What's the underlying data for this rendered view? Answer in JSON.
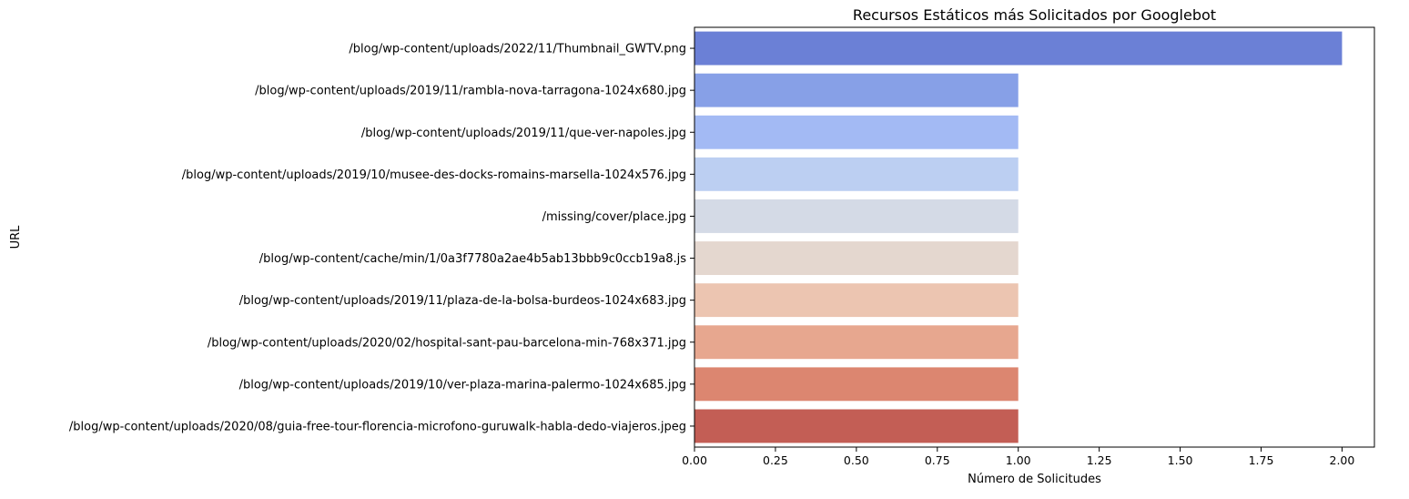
{
  "chart_data": {
    "type": "bar",
    "orientation": "horizontal",
    "title": "Recursos Estáticos más Solicitados por Googlebot",
    "xlabel": "Número de Solicitudes",
    "ylabel": "URL",
    "xlim": [
      0,
      2.1
    ],
    "xticks": [
      "0.00",
      "0.25",
      "0.50",
      "0.75",
      "1.00",
      "1.25",
      "1.50",
      "1.75",
      "2.00"
    ],
    "grid": false,
    "categories": [
      "/blog/wp-content/uploads/2022/11/Thumbnail_GWTV.png",
      "/blog/wp-content/uploads/2019/11/rambla-nova-tarragona-1024x680.jpg",
      "/blog/wp-content/uploads/2019/11/que-ver-napoles.jpg",
      "/blog/wp-content/uploads/2019/10/musee-des-docks-romains-marsella-1024x576.jpg",
      "/missing/cover/place.jpg",
      "/blog/wp-content/cache/min/1/0a3f7780a2ae4b5ab13bbb9c0ccb19a8.js",
      "/blog/wp-content/uploads/2019/11/plaza-de-la-bolsa-burdeos-1024x683.jpg",
      "/blog/wp-content/uploads/2020/02/hospital-sant-pau-barcelona-min-768x371.jpg",
      "/blog/wp-content/uploads/2019/10/ver-plaza-marina-palermo-1024x685.jpg",
      "/blog/wp-content/uploads/2020/08/guia-free-tour-florencia-microfono-guruwalk-habla-dedo-viajeros.jpeg"
    ],
    "values": [
      2,
      1,
      1,
      1,
      1,
      1,
      1,
      1,
      1,
      1
    ],
    "colors": [
      "#6b80d6",
      "#87a0e7",
      "#a3baf4",
      "#bccff2",
      "#d4dae6",
      "#e4d7cf",
      "#ecc5b1",
      "#e7a78f",
      "#dc8670",
      "#c35e55"
    ]
  }
}
